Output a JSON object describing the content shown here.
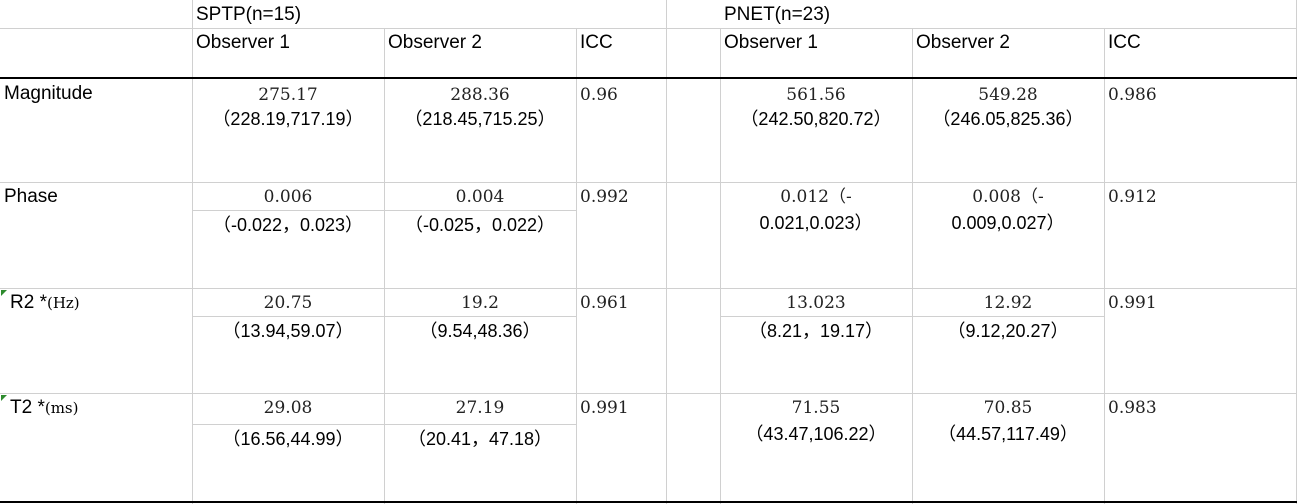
{
  "groups": [
    {
      "label": "SPTP(n=15)"
    },
    {
      "label": "PNET(n=23)"
    }
  ],
  "columns": {
    "spt": [
      "Observer 1",
      "Observer 2",
      "ICC"
    ],
    "pnet": [
      "Observer 1",
      "Observer 2",
      "ICC"
    ]
  },
  "rows": [
    {
      "label": "Magnitude",
      "spt_o1_val": "275.17",
      "spt_o1_range": "（228.19,717.19）",
      "spt_o2_val": "288.36",
      "spt_o2_range": "（218.45,715.25）",
      "spt_icc": "0.96",
      "pnet_o1_val": "561.56",
      "pnet_o1_range": "（242.50,820.72）",
      "pnet_o2_val": "549.28",
      "pnet_o2_range": "（246.05,825.36）",
      "pnet_icc": "0.986"
    },
    {
      "label": "Phase",
      "spt_o1_val": "0.006",
      "spt_o1_range": "（-0.022，0.023）",
      "spt_o2_val": "0.004",
      "spt_o2_range": "（-0.025，0.022）",
      "spt_icc": "0.992",
      "pnet_o1_val": "0.012（-",
      "pnet_o1_range": "0.021,0.023）",
      "pnet_o2_val": "0.008（-",
      "pnet_o2_range": "0.009,0.027）",
      "pnet_icc": "0.912"
    },
    {
      "label": "R2 *",
      "unit": "(Hz)",
      "spt_o1_val": "20.75",
      "spt_o1_range": "（13.94,59.07）",
      "spt_o2_val": "19.2",
      "spt_o2_range": "（9.54,48.36）",
      "spt_icc": "0.961",
      "pnet_o1_val": "13.023",
      "pnet_o1_range": "（8.21，19.17）",
      "pnet_o2_val": "12.92",
      "pnet_o2_range": "（9.12,20.27）",
      "pnet_icc": "0.991"
    },
    {
      "label": "T2 *",
      "unit": "(ms)",
      "spt_o1_val": "29.08",
      "spt_o1_range": "（16.56,44.99）",
      "spt_o2_val": "27.19",
      "spt_o2_range": "（20.41，47.18）",
      "spt_icc": "0.991",
      "pnet_o1_val": "71.55",
      "pnet_o1_range": "（43.47,106.22）",
      "pnet_o2_val": "70.85",
      "pnet_o2_range": "（44.57,117.49）",
      "pnet_icc": "0.983"
    }
  ],
  "colors": {
    "grid": "#d0d0d0",
    "rule": "#000000",
    "comment_marker": "#2e8b2e"
  }
}
